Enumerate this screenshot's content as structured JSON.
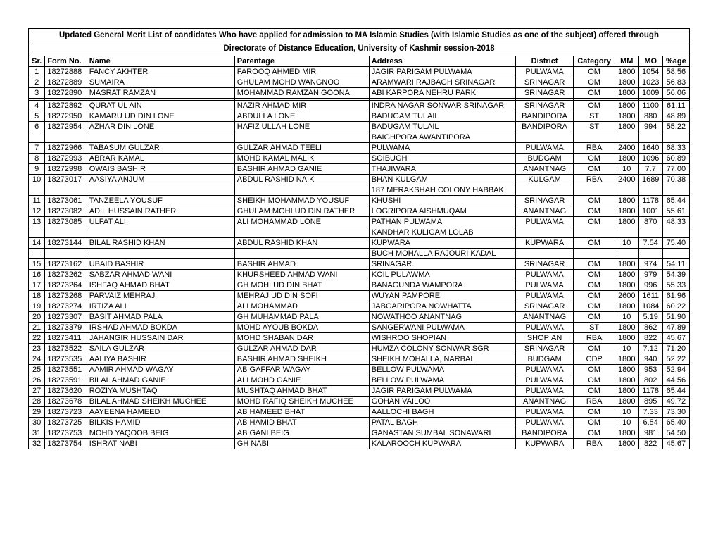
{
  "title_line1": "Updated General Merit List of candidates Who have applied for admission to MA Islamic Studies (with Islamic Studies as one of the subject) offered through",
  "title_line2": "Directorate of Distance Education, University of Kashmir session-2018",
  "columns": [
    "Sr.",
    "Form No.",
    "Name",
    "Parentage",
    "Address",
    "District",
    "Category",
    "MM",
    "MO",
    "%age"
  ],
  "rows": [
    [
      "1",
      "18272888",
      "FANCY AKHTER",
      "FAROOQ AHMED MIR",
      "JAGIR PARIGAM PULWAMA",
      "PULWAMA",
      "OM",
      "1800",
      "1054",
      "58.56"
    ],
    [
      "2",
      "18272889",
      "SUMAIRA",
      "GHULAM MOHD WANGNOO",
      "ARAMWARI RAJBAGH SRINAGAR",
      "SRINAGAR",
      "OM",
      "1800",
      "1023",
      "56.83"
    ],
    [
      "3",
      "18272890",
      "MASRAT RAMZAN",
      "MOHAMMAD RAMZAN GOONA",
      "ABI KARPORA NEHRU PARK",
      "SRINAGAR",
      "OM",
      "1800",
      "1009",
      "56.06"
    ],
    [
      "",
      "",
      "",
      "",
      "",
      "",
      "",
      "",
      "",
      ""
    ],
    [
      "4",
      "18272892",
      "QURAT UL AIN",
      "NAZIR AHMAD MIR",
      "INDRA NAGAR SONWAR SRINAGAR",
      "SRINAGAR",
      "OM",
      "1800",
      "1100",
      "61.11"
    ],
    [
      "5",
      "18272950",
      "KAMARU  UD DIN LONE",
      "ABDULLA LONE",
      "BADUGAM TULAIL",
      "BANDIPORA",
      "ST",
      "1800",
      "880",
      "48.89"
    ],
    [
      "6",
      "18272954",
      "AZHAR DIN LONE",
      "HAFIZ ULLAH LONE",
      "BADUGAM TULAIL",
      "BANDIPORA",
      "ST",
      "1800",
      "994",
      "55.22"
    ],
    [
      "",
      "",
      "",
      "",
      "BAIGHPORA AWANTIPORA",
      "",
      "",
      "",
      "",
      ""
    ],
    [
      "7",
      "18272966",
      "TABASUM GULZAR",
      "GULZAR AHMAD TEELI",
      "PULWAMA",
      "PULWAMA",
      "RBA",
      "2400",
      "1640",
      "68.33"
    ],
    [
      "8",
      "18272993",
      "ABRAR KAMAL",
      "MOHD KAMAL MALIK",
      "SOIBUGH",
      "BUDGAM",
      "OM",
      "1800",
      "1096",
      "60.89"
    ],
    [
      "9",
      "18272998",
      "OWAIS BASHIR",
      "BASHIR AHMAD GANIE",
      "THAJIWARA",
      "ANANTNAG",
      "OM",
      "10",
      "7.7",
      "77.00"
    ],
    [
      "10",
      "18273017",
      "AASIYA ANJUM",
      "ABDUL RASHID NAIK",
      "BHAN KULGAM",
      "KULGAM",
      "RBA",
      "2400",
      "1689",
      "70.38"
    ],
    [
      "",
      "",
      "",
      "",
      "187 MERAKSHAH COLONY HABBAK",
      "",
      "",
      "",
      "",
      ""
    ],
    [
      "11",
      "18273061",
      "TANZEELA YOUSUF",
      "SHEIKH MOHAMMAD YOUSUF",
      "KHUSHI",
      "SRINAGAR",
      "OM",
      "1800",
      "1178",
      "65.44"
    ],
    [
      "12",
      "18273082",
      "ADIL HUSSAIN RATHER",
      "GHULAM MOHI UD DIN RATHER",
      "LOGRIPORA AISHMUQAM",
      "ANANTNAG",
      "OM",
      "1800",
      "1001",
      "55.61"
    ],
    [
      "13",
      "18273085",
      "ULFAT ALI",
      "ALI MOHAMMAD LONE",
      "PATHAN PULWAMA",
      "PULWAMA",
      "OM",
      "1800",
      "870",
      "48.33"
    ],
    [
      "",
      "",
      "",
      "",
      "KANDHAR KULIGAM LOLAB",
      "",
      "",
      "",
      "",
      ""
    ],
    [
      "14",
      "18273144",
      "BILAL RASHID KHAN",
      "ABDUL RASHID KHAN",
      "KUPWARA",
      "KUPWARA",
      "OM",
      "10",
      "7.54",
      "75.40"
    ],
    [
      "",
      "",
      "",
      "",
      "BUCH MOHALLA RAJOURI KADAL",
      "",
      "",
      "",
      "",
      ""
    ],
    [
      "15",
      "18273162",
      "UBAID BASHIR",
      "BASHIR AHMAD",
      "SRINAGAR.",
      "SRINAGAR",
      "OM",
      "1800",
      "974",
      "54.11"
    ],
    [
      "16",
      "18273262",
      "SABZAR AHMAD WANI",
      "KHURSHEED AHMAD WANI",
      "KOIL PULAWMA",
      "PULWAMA",
      "OM",
      "1800",
      "979",
      "54.39"
    ],
    [
      "17",
      "18273264",
      "ISHFAQ AHMAD BHAT",
      "GH MOHI UD DIN BHAT",
      "BANAGUNDA WAMPORA",
      "PULWAMA",
      "OM",
      "1800",
      "996",
      "55.33"
    ],
    [
      "18",
      "18273268",
      "PARVAIZ MEHRAJ",
      "MEHRAJ UD DIN SOFI",
      "WUYAN PAMPORE",
      "PULWAMA",
      "OM",
      "2600",
      "1611",
      "61.96"
    ],
    [
      "19",
      "18273274",
      "IRTIZA ALI",
      "ALI MOHAMMAD",
      "JABGARIPORA NOWHATTA",
      "SRINAGAR",
      "OM",
      "1800",
      "1084",
      "60.22"
    ],
    [
      "20",
      "18273307",
      "BASIT AHMAD PALA",
      "GH MUHAMMAD PALA",
      "NOWATHOO ANANTNAG",
      "ANANTNAG",
      "OM",
      "10",
      "5.19",
      "51.90"
    ],
    [
      "21",
      "18273379",
      "IRSHAD AHMAD BOKDA",
      "MOHD AYOUB BOKDA",
      "SANGERWANI PULWAMA",
      "PULWAMA",
      "ST",
      "1800",
      "862",
      "47.89"
    ],
    [
      "22",
      "18273411",
      "JAHANGIR HUSSAIN DAR",
      "MOHD SHABAN DAR",
      "WISHROO SHOPIAN",
      "SHOPIAN",
      "RBA",
      "1800",
      "822",
      "45.67"
    ],
    [
      "23",
      "18273522",
      "SAILA GULZAR",
      "GULZAR AHMAD DAR",
      "HUMZA COLONY SONWAR SGR",
      "SRINAGAR",
      "OM",
      "10",
      "7.12",
      "71.20"
    ],
    [
      "24",
      "18273535",
      "AALIYA BASHIR",
      "BASHIR AHMAD SHEIKH",
      "SHEIKH MOHALLA, NARBAL",
      "BUDGAM",
      "CDP",
      "1800",
      "940",
      "52.22"
    ],
    [
      "25",
      "18273551",
      "AAMIR AHMAD WAGAY",
      "AB GAFFAR WAGAY",
      "BELLOW PULWAMA",
      "PULWAMA",
      "OM",
      "1800",
      "953",
      "52.94"
    ],
    [
      "26",
      "18273591",
      "BILAL AHMAD GANIE",
      "ALI MOHD GANIE",
      "BELLOW PULWAMA",
      "PULWAMA",
      "OM",
      "1800",
      "802",
      "44.56"
    ],
    [
      "27",
      "18273620",
      "ROZIYA MUSHTAQ",
      "MUSHTAQ AHMAD BHAT",
      "JAGIR PARIGAM PULWAMA",
      "PULWAMA",
      "OM",
      "1800",
      "1178",
      "65.44"
    ],
    [
      "28",
      "18273678",
      "BILAL AHMAD  SHEIKH MUCHEE",
      "MOHD RAFIQ SHEIKH MUCHEE",
      "GOHAN VAILOO",
      "ANANTNAG",
      "RBA",
      "1800",
      "895",
      "49.72"
    ],
    [
      "29",
      "18273723",
      "AAYEENA HAMEED",
      "AB HAMEED BHAT",
      "AALLOCHI BAGH",
      "PULWAMA",
      "OM",
      "10",
      "7.33",
      "73.30"
    ],
    [
      "30",
      "18273725",
      "BILKIS HAMID",
      "AB HAMID BHAT",
      "PATAL BAGH",
      "PULWAMA",
      "OM",
      "10",
      "6.54",
      "65.40"
    ],
    [
      "31",
      "18273753",
      "MOHD YAQOOB BEIG",
      "AB GANI BEIG",
      "GANASTAN SUMBAL SONAWARI",
      "BANDIPORA",
      "OM",
      "1800",
      "981",
      "54.50"
    ],
    [
      "32",
      "18273754",
      "ISHRAT NABI",
      "GH NABI",
      "KALAROOCH KUPWARA",
      "KUPWARA",
      "RBA",
      "1800",
      "822",
      "45.67"
    ]
  ],
  "col_align": [
    "center",
    "left",
    "left",
    "left",
    "left",
    "center",
    "center",
    "center",
    "center",
    "center"
  ]
}
